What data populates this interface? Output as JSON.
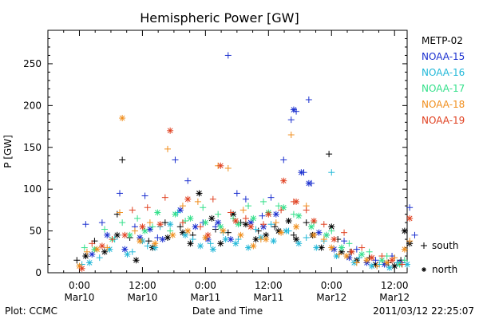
{
  "chart_data": {
    "type": "scatter",
    "title": "Hemispheric Power [GW]",
    "ylabel": "P [GW]",
    "xlabel": "Date and Time",
    "ylim": [
      0,
      290
    ],
    "xlim": [
      -0.25,
      2.6
    ],
    "x_unit": "days since 2011-03-10 00:00",
    "yticks": [
      0,
      50,
      100,
      150,
      200,
      250
    ],
    "xticks": [
      {
        "x": 0.0,
        "time": "0:00",
        "date": "Mar10"
      },
      {
        "x": 0.5,
        "time": "12:00",
        "date": "Mar10"
      },
      {
        "x": 1.0,
        "time": "0:00",
        "date": "Mar11"
      },
      {
        "x": 1.5,
        "time": "12:00",
        "date": "Mar11"
      },
      {
        "x": 2.0,
        "time": "0:00",
        "date": "Mar12"
      },
      {
        "x": 2.5,
        "time": "12:00",
        "date": "Mar12"
      }
    ],
    "markers": {
      "south": "+",
      "north": "*"
    },
    "legend_position": "right",
    "marker_legend": [
      {
        "symbol": "+",
        "label": "south"
      },
      {
        "symbol": "*",
        "label": "north"
      }
    ],
    "series": [
      {
        "name": "METP-02",
        "color": "#000000",
        "south": [
          [
            -0.02,
            15
          ],
          [
            0.12,
            38
          ],
          [
            0.3,
            70
          ],
          [
            0.34,
            135
          ],
          [
            0.4,
            42
          ],
          [
            0.55,
            38
          ],
          [
            0.68,
            60
          ],
          [
            0.8,
            55
          ],
          [
            0.9,
            45
          ],
          [
            1.08,
            52
          ],
          [
            1.18,
            48
          ],
          [
            1.28,
            60
          ],
          [
            1.42,
            50
          ],
          [
            1.55,
            55
          ],
          [
            1.7,
            45
          ],
          [
            1.8,
            60
          ],
          [
            1.98,
            142
          ],
          [
            2.05,
            40
          ],
          [
            2.15,
            25
          ],
          [
            2.3,
            18
          ],
          [
            2.45,
            12
          ],
          [
            2.55,
            15
          ]
        ],
        "north": [
          [
            0.05,
            20
          ],
          [
            0.2,
            25
          ],
          [
            0.3,
            45
          ],
          [
            0.45,
            15
          ],
          [
            0.58,
            30
          ],
          [
            0.7,
            42
          ],
          [
            0.82,
            48
          ],
          [
            0.88,
            35
          ],
          [
            0.95,
            95
          ],
          [
            1.05,
            65
          ],
          [
            1.12,
            35
          ],
          [
            1.22,
            70
          ],
          [
            1.32,
            58
          ],
          [
            1.4,
            40
          ],
          [
            1.48,
            45
          ],
          [
            1.58,
            50
          ],
          [
            1.66,
            62
          ],
          [
            1.72,
            40
          ],
          [
            1.85,
            45
          ],
          [
            1.92,
            30
          ],
          [
            2.0,
            55
          ],
          [
            2.08,
            25
          ],
          [
            2.2,
            15
          ],
          [
            2.35,
            10
          ],
          [
            2.5,
            8
          ],
          [
            2.58,
            50
          ],
          [
            2.62,
            35
          ]
        ]
      },
      {
        "name": "NOAA-15",
        "color": "#1a2fcf",
        "south": [
          [
            0.05,
            58
          ],
          [
            0.18,
            60
          ],
          [
            0.32,
            95
          ],
          [
            0.44,
            55
          ],
          [
            0.52,
            92
          ],
          [
            0.62,
            42
          ],
          [
            0.76,
            135
          ],
          [
            0.86,
            110
          ],
          [
            0.98,
            60
          ],
          [
            1.08,
            55
          ],
          [
            1.18,
            260
          ],
          [
            1.25,
            95
          ],
          [
            1.32,
            88
          ],
          [
            1.45,
            68
          ],
          [
            1.52,
            90
          ],
          [
            1.62,
            135
          ],
          [
            1.68,
            183
          ],
          [
            1.72,
            193
          ],
          [
            1.78,
            120
          ],
          [
            1.82,
            207
          ],
          [
            1.84,
            107
          ],
          [
            1.96,
            45
          ],
          [
            2.1,
            38
          ],
          [
            2.2,
            28
          ],
          [
            2.35,
            15
          ],
          [
            2.48,
            20
          ],
          [
            2.56,
            12
          ],
          [
            2.62,
            78
          ],
          [
            2.66,
            45
          ]
        ],
        "north": [
          [
            0.1,
            22
          ],
          [
            0.22,
            45
          ],
          [
            0.36,
            28
          ],
          [
            0.48,
            42
          ],
          [
            0.56,
            52
          ],
          [
            0.66,
            40
          ],
          [
            0.8,
            75
          ],
          [
            0.92,
            55
          ],
          [
            1.02,
            40
          ],
          [
            1.1,
            60
          ],
          [
            1.2,
            40
          ],
          [
            1.36,
            60
          ],
          [
            1.46,
            55
          ],
          [
            1.56,
            70
          ],
          [
            1.7,
            195
          ],
          [
            1.76,
            120
          ],
          [
            1.82,
            107
          ],
          [
            1.9,
            48
          ],
          [
            2.02,
            28
          ],
          [
            2.14,
            18
          ],
          [
            2.28,
            12
          ],
          [
            2.42,
            10
          ],
          [
            2.54,
            12
          ]
        ]
      },
      {
        "name": "NOAA-16",
        "color": "#22b8d8",
        "south": [
          [
            0.02,
            10
          ],
          [
            0.16,
            18
          ],
          [
            0.28,
            40
          ],
          [
            0.42,
            25
          ],
          [
            0.54,
            32
          ],
          [
            0.64,
            55
          ],
          [
            0.78,
            72
          ],
          [
            0.9,
            40
          ],
          [
            1.04,
            35
          ],
          [
            1.14,
            48
          ],
          [
            1.26,
            40
          ],
          [
            1.4,
            52
          ],
          [
            1.52,
            58
          ],
          [
            1.66,
            50
          ],
          [
            1.8,
            42
          ],
          [
            1.94,
            38
          ],
          [
            2.0,
            120
          ],
          [
            2.08,
            30
          ],
          [
            2.22,
            18
          ],
          [
            2.38,
            10
          ],
          [
            2.52,
            12
          ]
        ],
        "north": [
          [
            0.08,
            12
          ],
          [
            0.24,
            28
          ],
          [
            0.38,
            22
          ],
          [
            0.5,
            38
          ],
          [
            0.6,
            30
          ],
          [
            0.72,
            58
          ],
          [
            0.84,
            45
          ],
          [
            0.96,
            32
          ],
          [
            1.06,
            28
          ],
          [
            1.16,
            40
          ],
          [
            1.24,
            35
          ],
          [
            1.34,
            30
          ],
          [
            1.44,
            42
          ],
          [
            1.54,
            38
          ],
          [
            1.64,
            50
          ],
          [
            1.74,
            35
          ],
          [
            1.88,
            30
          ],
          [
            2.04,
            20
          ],
          [
            2.18,
            12
          ],
          [
            2.32,
            8
          ],
          [
            2.46,
            6
          ],
          [
            2.6,
            10
          ]
        ]
      },
      {
        "name": "NOAA-17",
        "color": "#33e08a",
        "south": [
          [
            0.04,
            30
          ],
          [
            0.2,
            52
          ],
          [
            0.34,
            60
          ],
          [
            0.46,
            65
          ],
          [
            0.58,
            55
          ],
          [
            0.72,
            50
          ],
          [
            0.84,
            62
          ],
          [
            0.98,
            78
          ],
          [
            1.1,
            70
          ],
          [
            1.22,
            65
          ],
          [
            1.34,
            80
          ],
          [
            1.46,
            85
          ],
          [
            1.58,
            80
          ],
          [
            1.7,
            70
          ],
          [
            1.86,
            60
          ],
          [
            2.0,
            50
          ],
          [
            2.14,
            35
          ],
          [
            2.3,
            25
          ],
          [
            2.44,
            20
          ],
          [
            2.58,
            15
          ]
        ],
        "north": [
          [
            0.12,
            28
          ],
          [
            0.26,
            40
          ],
          [
            0.4,
            45
          ],
          [
            0.52,
            50
          ],
          [
            0.62,
            72
          ],
          [
            0.76,
            70
          ],
          [
            0.88,
            65
          ],
          [
            1.0,
            60
          ],
          [
            1.12,
            55
          ],
          [
            1.26,
            58
          ],
          [
            1.38,
            65
          ],
          [
            1.5,
            72
          ],
          [
            1.62,
            78
          ],
          [
            1.74,
            68
          ],
          [
            1.84,
            55
          ],
          [
            1.96,
            45
          ],
          [
            2.08,
            30
          ],
          [
            2.24,
            22
          ],
          [
            2.4,
            15
          ],
          [
            2.54,
            10
          ]
        ]
      },
      {
        "name": "NOAA-18",
        "color": "#f08e1c",
        "south": [
          [
            0.06,
            25
          ],
          [
            0.22,
            30
          ],
          [
            0.32,
            72
          ],
          [
            0.44,
            50
          ],
          [
            0.56,
            60
          ],
          [
            0.7,
            148
          ],
          [
            0.82,
            80
          ],
          [
            0.94,
            85
          ],
          [
            1.1,
            128
          ],
          [
            1.18,
            125
          ],
          [
            1.3,
            75
          ],
          [
            1.44,
            40
          ],
          [
            1.56,
            60
          ],
          [
            1.68,
            165
          ],
          [
            1.8,
            80
          ],
          [
            1.94,
            40
          ],
          [
            2.06,
            22
          ],
          [
            2.2,
            12
          ],
          [
            2.36,
            8
          ],
          [
            2.5,
            18
          ],
          [
            2.62,
            38
          ]
        ],
        "north": [
          [
            0.0,
            8
          ],
          [
            0.14,
            28
          ],
          [
            0.34,
            185
          ],
          [
            0.48,
            38
          ],
          [
            0.6,
            35
          ],
          [
            0.74,
            45
          ],
          [
            0.86,
            50
          ],
          [
            1.0,
            42
          ],
          [
            1.14,
            50
          ],
          [
            1.28,
            45
          ],
          [
            1.38,
            32
          ],
          [
            1.48,
            40
          ],
          [
            1.6,
            48
          ],
          [
            1.72,
            55
          ],
          [
            1.86,
            45
          ],
          [
            2.0,
            30
          ],
          [
            2.12,
            20
          ],
          [
            2.28,
            15
          ],
          [
            2.44,
            12
          ],
          [
            2.58,
            28
          ]
        ]
      },
      {
        "name": "NOAA-19",
        "color": "#e04020",
        "south": [
          [
            0.1,
            35
          ],
          [
            0.26,
            40
          ],
          [
            0.42,
            75
          ],
          [
            0.54,
            78
          ],
          [
            0.68,
            90
          ],
          [
            0.82,
            60
          ],
          [
            0.96,
            55
          ],
          [
            1.06,
            88
          ],
          [
            1.2,
            72
          ],
          [
            1.32,
            65
          ],
          [
            1.46,
            58
          ],
          [
            1.6,
            75
          ],
          [
            1.7,
            85
          ],
          [
            1.8,
            75
          ],
          [
            1.94,
            58
          ],
          [
            2.1,
            48
          ],
          [
            2.24,
            30
          ],
          [
            2.4,
            20
          ],
          [
            2.56,
            10
          ]
        ],
        "north": [
          [
            0.02,
            5
          ],
          [
            0.18,
            32
          ],
          [
            0.36,
            45
          ],
          [
            0.5,
            55
          ],
          [
            0.64,
            58
          ],
          [
            0.72,
            170
          ],
          [
            0.86,
            88
          ],
          [
            1.02,
            45
          ],
          [
            1.12,
            128
          ],
          [
            1.24,
            62
          ],
          [
            1.36,
            55
          ],
          [
            1.5,
            70
          ],
          [
            1.62,
            110
          ],
          [
            1.72,
            85
          ],
          [
            1.86,
            62
          ],
          [
            2.02,
            40
          ],
          [
            2.16,
            25
          ],
          [
            2.32,
            18
          ],
          [
            2.48,
            15
          ],
          [
            2.62,
            65
          ]
        ]
      }
    ]
  },
  "footer": {
    "left": "Plot: CCMC",
    "right": "2011/03/12 22:25:07"
  }
}
